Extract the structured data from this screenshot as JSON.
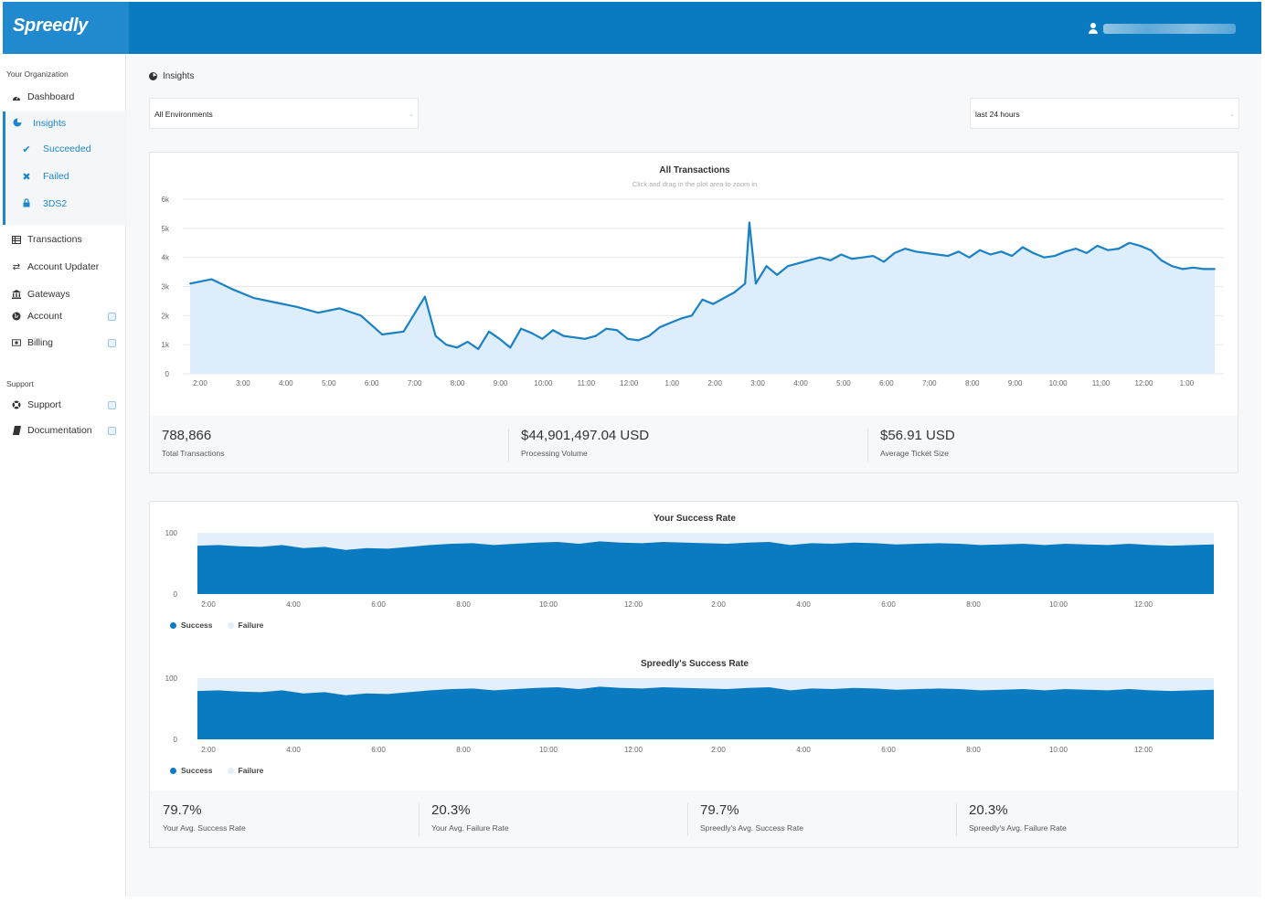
{
  "app": {
    "brand": "Spreedly"
  },
  "sidebar": {
    "org_heading": "Your Organization",
    "items_top": [
      {
        "label": "Dashboard",
        "icon": "tachometer-icon"
      }
    ],
    "insights": {
      "label": "Insights",
      "icon": "pie-chart-icon",
      "children": [
        {
          "label": "Succeeded",
          "icon": "check-icon",
          "glyph": "✔"
        },
        {
          "label": "Failed",
          "icon": "x-icon",
          "glyph": "✖"
        },
        {
          "label": "3DS2",
          "icon": "lock-icon",
          "glyph": "🔒"
        }
      ]
    },
    "items_bottom": [
      {
        "label": "Transactions",
        "icon": "table-icon",
        "glyph": "▦",
        "external": false
      },
      {
        "label": "Account Updater",
        "icon": "exchange-icon",
        "glyph": "⇄",
        "external": false
      },
      {
        "label": "Gateways",
        "icon": "bank-icon",
        "glyph": "🏛",
        "external": false
      },
      {
        "label": "Account",
        "icon": "globe-icon",
        "glyph": "●",
        "external": true
      },
      {
        "label": "Billing",
        "icon": "money-icon",
        "glyph": "▣",
        "external": true
      }
    ],
    "support_heading": "Support",
    "support_items": [
      {
        "label": "Support",
        "icon": "life-ring-icon",
        "glyph": "⊕",
        "external": true
      },
      {
        "label": "Documentation",
        "icon": "book-icon",
        "glyph": "▮",
        "external": true
      }
    ]
  },
  "page": {
    "breadcrumb": "Insights",
    "environment_select": "All Environments",
    "range_select": "last 24 hours"
  },
  "transactions_panel": {
    "stats": [
      {
        "value": "788,866",
        "label": "Total Transactions"
      },
      {
        "value": "$44,901,497.04 USD",
        "label": "Processing Volume"
      },
      {
        "value": "$56.91 USD",
        "label": "Average Ticket Size"
      }
    ]
  },
  "success_panel": {
    "stats": [
      {
        "value": "79.7%",
        "label": "Your Avg. Success Rate"
      },
      {
        "value": "20.3%",
        "label": "Your Avg. Failure Rate"
      },
      {
        "value": "79.7%",
        "label": "Spreedly's Avg. Success Rate"
      },
      {
        "value": "20.3%",
        "label": "Spreedly's Avg. Failure Rate"
      }
    ]
  },
  "colors": {
    "brand": "#0b7bc1",
    "series_line": "#1a81c4",
    "area_fill": "#deedfb",
    "success": "#0b7bc1",
    "failure": "#e3f0fc"
  },
  "chart_data": [
    {
      "type": "area",
      "title": "All Transactions",
      "subtitle": "Click and drag in the plot area to zoom in",
      "xlabel": "",
      "ylabel": "",
      "ylim": [
        0,
        6000
      ],
      "y_ticks": [
        "0",
        "1k",
        "2k",
        "3k",
        "4k",
        "5k",
        "6k"
      ],
      "x_ticks": [
        "2:00",
        "3:00",
        "4:00",
        "5:00",
        "6:00",
        "7:00",
        "8:00",
        "9:00",
        "10:00",
        "11:00",
        "12:00",
        "1:00",
        "2:00",
        "3:00",
        "4:00",
        "5:00",
        "6:00",
        "7:00",
        "8:00",
        "9:00",
        "10:00",
        "11:00",
        "12:00",
        "1:00"
      ],
      "x_hours": [
        -0.25,
        0.25,
        0.75,
        1.25,
        1.75,
        2.25,
        2.75,
        3.25,
        3.75,
        4.25,
        4.75,
        5.25,
        5.5,
        5.75,
        6.0,
        6.25,
        6.5,
        6.75,
        7.0,
        7.25,
        7.5,
        7.75,
        8.0,
        8.25,
        8.5,
        8.75,
        9.0,
        9.25,
        9.5,
        9.75,
        10.0,
        10.25,
        10.5,
        10.75,
        11.0,
        11.25,
        11.5,
        11.75,
        12.0,
        12.25,
        12.5,
        12.75,
        12.85,
        13.0,
        13.25,
        13.5,
        13.75,
        14.0,
        14.25,
        14.5,
        14.75,
        15.0,
        15.25,
        15.5,
        15.75,
        16.0,
        16.25,
        16.5,
        16.75,
        17.0,
        17.25,
        17.5,
        17.75,
        18.0,
        18.25,
        18.5,
        18.75,
        19.0,
        19.25,
        19.5,
        19.75,
        20.0,
        20.25,
        20.5,
        20.75,
        21.0,
        21.25,
        21.5,
        21.75,
        22.0,
        22.25,
        22.5,
        22.75,
        23.0,
        23.25,
        23.5,
        23.75
      ],
      "x_hours_note": "",
      "series": [
        {
          "name": "",
          "values": [
            3100,
            3250,
            2900,
            2600,
            2450,
            2300,
            2100,
            2250,
            2000,
            1350,
            1450,
            2650,
            1300,
            1000,
            900,
            1100,
            850,
            1450,
            1200,
            900,
            1550,
            1400,
            1200,
            1500,
            1300,
            1250,
            1200,
            1300,
            1550,
            1500,
            1200,
            1150,
            1300,
            1600,
            1750,
            1900,
            2000,
            2550,
            2400,
            2600,
            2800,
            3100,
            5200,
            3100,
            3700,
            3400,
            3700,
            3800,
            3900,
            4000,
            3900,
            4100,
            3950,
            4000,
            4050,
            3850,
            4150,
            4300,
            4200,
            4150,
            4100,
            4050,
            4200,
            4000,
            4250,
            4100,
            4200,
            4050,
            4350,
            4150,
            4000,
            4050,
            4200,
            4300,
            4150,
            4400,
            4250,
            4300,
            4500,
            4400,
            4250,
            3900,
            3700,
            3600,
            3650,
            3600,
            3600
          ]
        }
      ]
    },
    {
      "type": "area",
      "title": "Your Success Rate",
      "ylim": [
        0,
        100
      ],
      "y_ticks": [
        "0",
        "100"
      ],
      "x_ticks": [
        "2:00",
        "4:00",
        "6:00",
        "8:00",
        "10:00",
        "12:00",
        "2:00",
        "4:00",
        "6:00",
        "8:00",
        "10:00",
        "12:00"
      ],
      "series": [
        {
          "name": "Success",
          "values": [
            79,
            80,
            78,
            77,
            80,
            75,
            77,
            72,
            75,
            74,
            77,
            80,
            82,
            83,
            80,
            82,
            84,
            85,
            82,
            86,
            84,
            83,
            85,
            84,
            83,
            82,
            84,
            85,
            80,
            83,
            82,
            84,
            83,
            81,
            82,
            83,
            82,
            80,
            81,
            82,
            80,
            82,
            81,
            80,
            82,
            80,
            79,
            80,
            81
          ]
        },
        {
          "name": "Failure",
          "values": [
            21,
            20,
            22,
            23,
            20,
            25,
            23,
            28,
            25,
            26,
            23,
            20,
            18,
            17,
            20,
            18,
            16,
            15,
            18,
            14,
            16,
            17,
            15,
            16,
            17,
            18,
            16,
            15,
            20,
            17,
            18,
            16,
            17,
            19,
            18,
            17,
            18,
            20,
            19,
            18,
            20,
            18,
            19,
            20,
            18,
            20,
            21,
            20,
            19
          ]
        }
      ]
    },
    {
      "type": "area",
      "title": "Spreedly's Success Rate",
      "ylim": [
        0,
        100
      ],
      "y_ticks": [
        "0",
        "100"
      ],
      "x_ticks": [
        "2:00",
        "4:00",
        "6:00",
        "8:00",
        "10:00",
        "12:00",
        "2:00",
        "4:00",
        "6:00",
        "8:00",
        "10:00",
        "12:00"
      ],
      "series": [
        {
          "name": "Success",
          "values": [
            79,
            80,
            78,
            77,
            80,
            75,
            77,
            72,
            75,
            74,
            77,
            80,
            82,
            83,
            80,
            82,
            84,
            85,
            82,
            86,
            84,
            83,
            85,
            84,
            83,
            82,
            84,
            85,
            80,
            83,
            82,
            84,
            83,
            81,
            82,
            83,
            82,
            80,
            81,
            82,
            80,
            82,
            81,
            80,
            82,
            80,
            79,
            80,
            81
          ]
        },
        {
          "name": "Failure",
          "values": [
            21,
            20,
            22,
            23,
            20,
            25,
            23,
            28,
            25,
            26,
            23,
            20,
            18,
            17,
            20,
            18,
            16,
            15,
            18,
            14,
            16,
            17,
            15,
            16,
            17,
            18,
            16,
            15,
            20,
            17,
            18,
            16,
            17,
            19,
            18,
            17,
            18,
            20,
            19,
            18,
            20,
            18,
            19,
            20,
            18,
            20,
            21,
            20,
            19
          ]
        }
      ]
    }
  ]
}
